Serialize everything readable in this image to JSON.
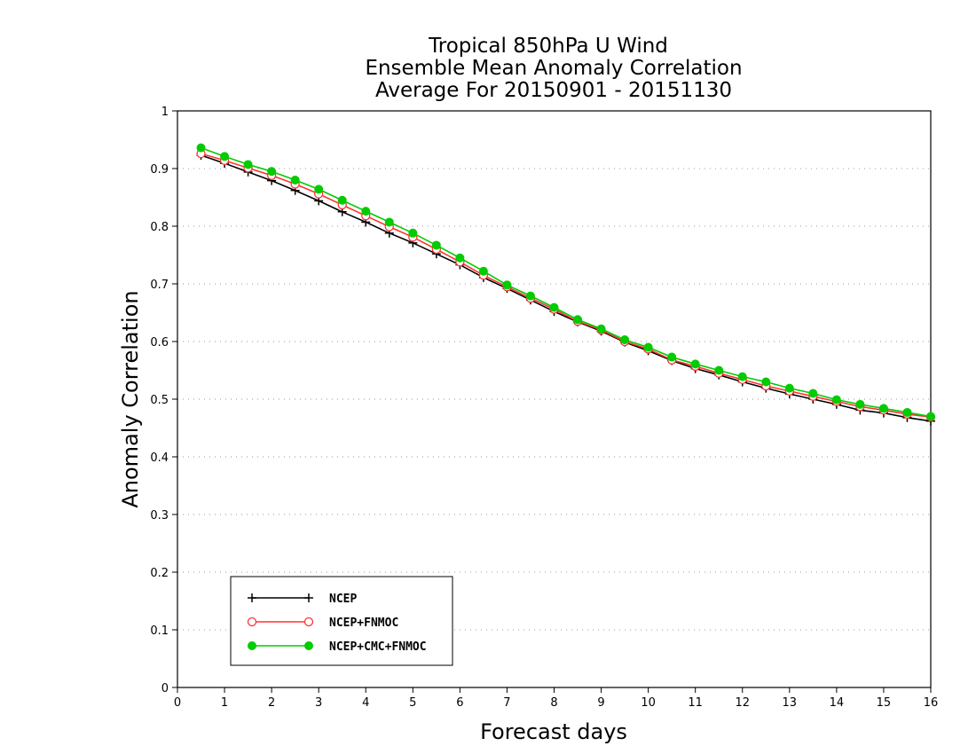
{
  "chart_data": {
    "type": "line",
    "title_lines": [
      "Tropical 850hPa U Wind",
      "Ensemble Mean Anomaly Correlation",
      "Average For 20150901 - 20151130"
    ],
    "xlabel": "Forecast days",
    "ylabel": "Anomaly Correlation",
    "xlim": [
      0,
      16
    ],
    "ylim": [
      0,
      1
    ],
    "xticks": [
      "0",
      "1",
      "2",
      "3",
      "4",
      "5",
      "6",
      "7",
      "8",
      "9",
      "10",
      "11",
      "12",
      "13",
      "14",
      "15",
      "16"
    ],
    "yticks": [
      "0",
      "0.1",
      "0.2",
      "0.3",
      "0.4",
      "0.5",
      "0.6",
      "0.7",
      "0.8",
      "0.9",
      "1"
    ],
    "grid": true,
    "legend_position": "bottom-left",
    "x": [
      0.5,
      1,
      1.5,
      2,
      2.5,
      3,
      3.5,
      4,
      4.5,
      5,
      5.5,
      6,
      6.5,
      7,
      7.5,
      8,
      8.5,
      9,
      9.5,
      10,
      10.5,
      11,
      11.5,
      12,
      12.5,
      13,
      13.5,
      14,
      14.5,
      15,
      15.5,
      16
    ],
    "series": [
      {
        "name": "NCEP",
        "color": "#000000",
        "marker": "plus",
        "values": [
          0.923,
          0.909,
          0.894,
          0.879,
          0.862,
          0.844,
          0.825,
          0.807,
          0.788,
          0.771,
          0.752,
          0.733,
          0.711,
          0.692,
          0.672,
          0.652,
          0.634,
          0.618,
          0.599,
          0.584,
          0.567,
          0.553,
          0.542,
          0.53,
          0.519,
          0.509,
          0.5,
          0.491,
          0.481,
          0.476,
          0.468,
          0.462
        ]
      },
      {
        "name": "NCEP+FNMOC",
        "color": "#ff3333",
        "marker": "circle-open",
        "values": [
          0.926,
          0.914,
          0.901,
          0.888,
          0.873,
          0.856,
          0.837,
          0.818,
          0.799,
          0.781,
          0.76,
          0.738,
          0.715,
          0.695,
          0.675,
          0.656,
          0.635,
          0.62,
          0.6,
          0.587,
          0.568,
          0.557,
          0.545,
          0.534,
          0.523,
          0.514,
          0.505,
          0.496,
          0.487,
          0.481,
          0.474,
          0.469
        ]
      },
      {
        "name": "NCEP+CMC+FNMOC",
        "color": "#00cc00",
        "marker": "circle-filled",
        "values": [
          0.936,
          0.921,
          0.907,
          0.895,
          0.88,
          0.864,
          0.845,
          0.826,
          0.807,
          0.788,
          0.767,
          0.745,
          0.722,
          0.698,
          0.679,
          0.659,
          0.638,
          0.622,
          0.603,
          0.59,
          0.573,
          0.561,
          0.55,
          0.539,
          0.53,
          0.519,
          0.51,
          0.499,
          0.491,
          0.484,
          0.477,
          0.47
        ]
      }
    ]
  }
}
